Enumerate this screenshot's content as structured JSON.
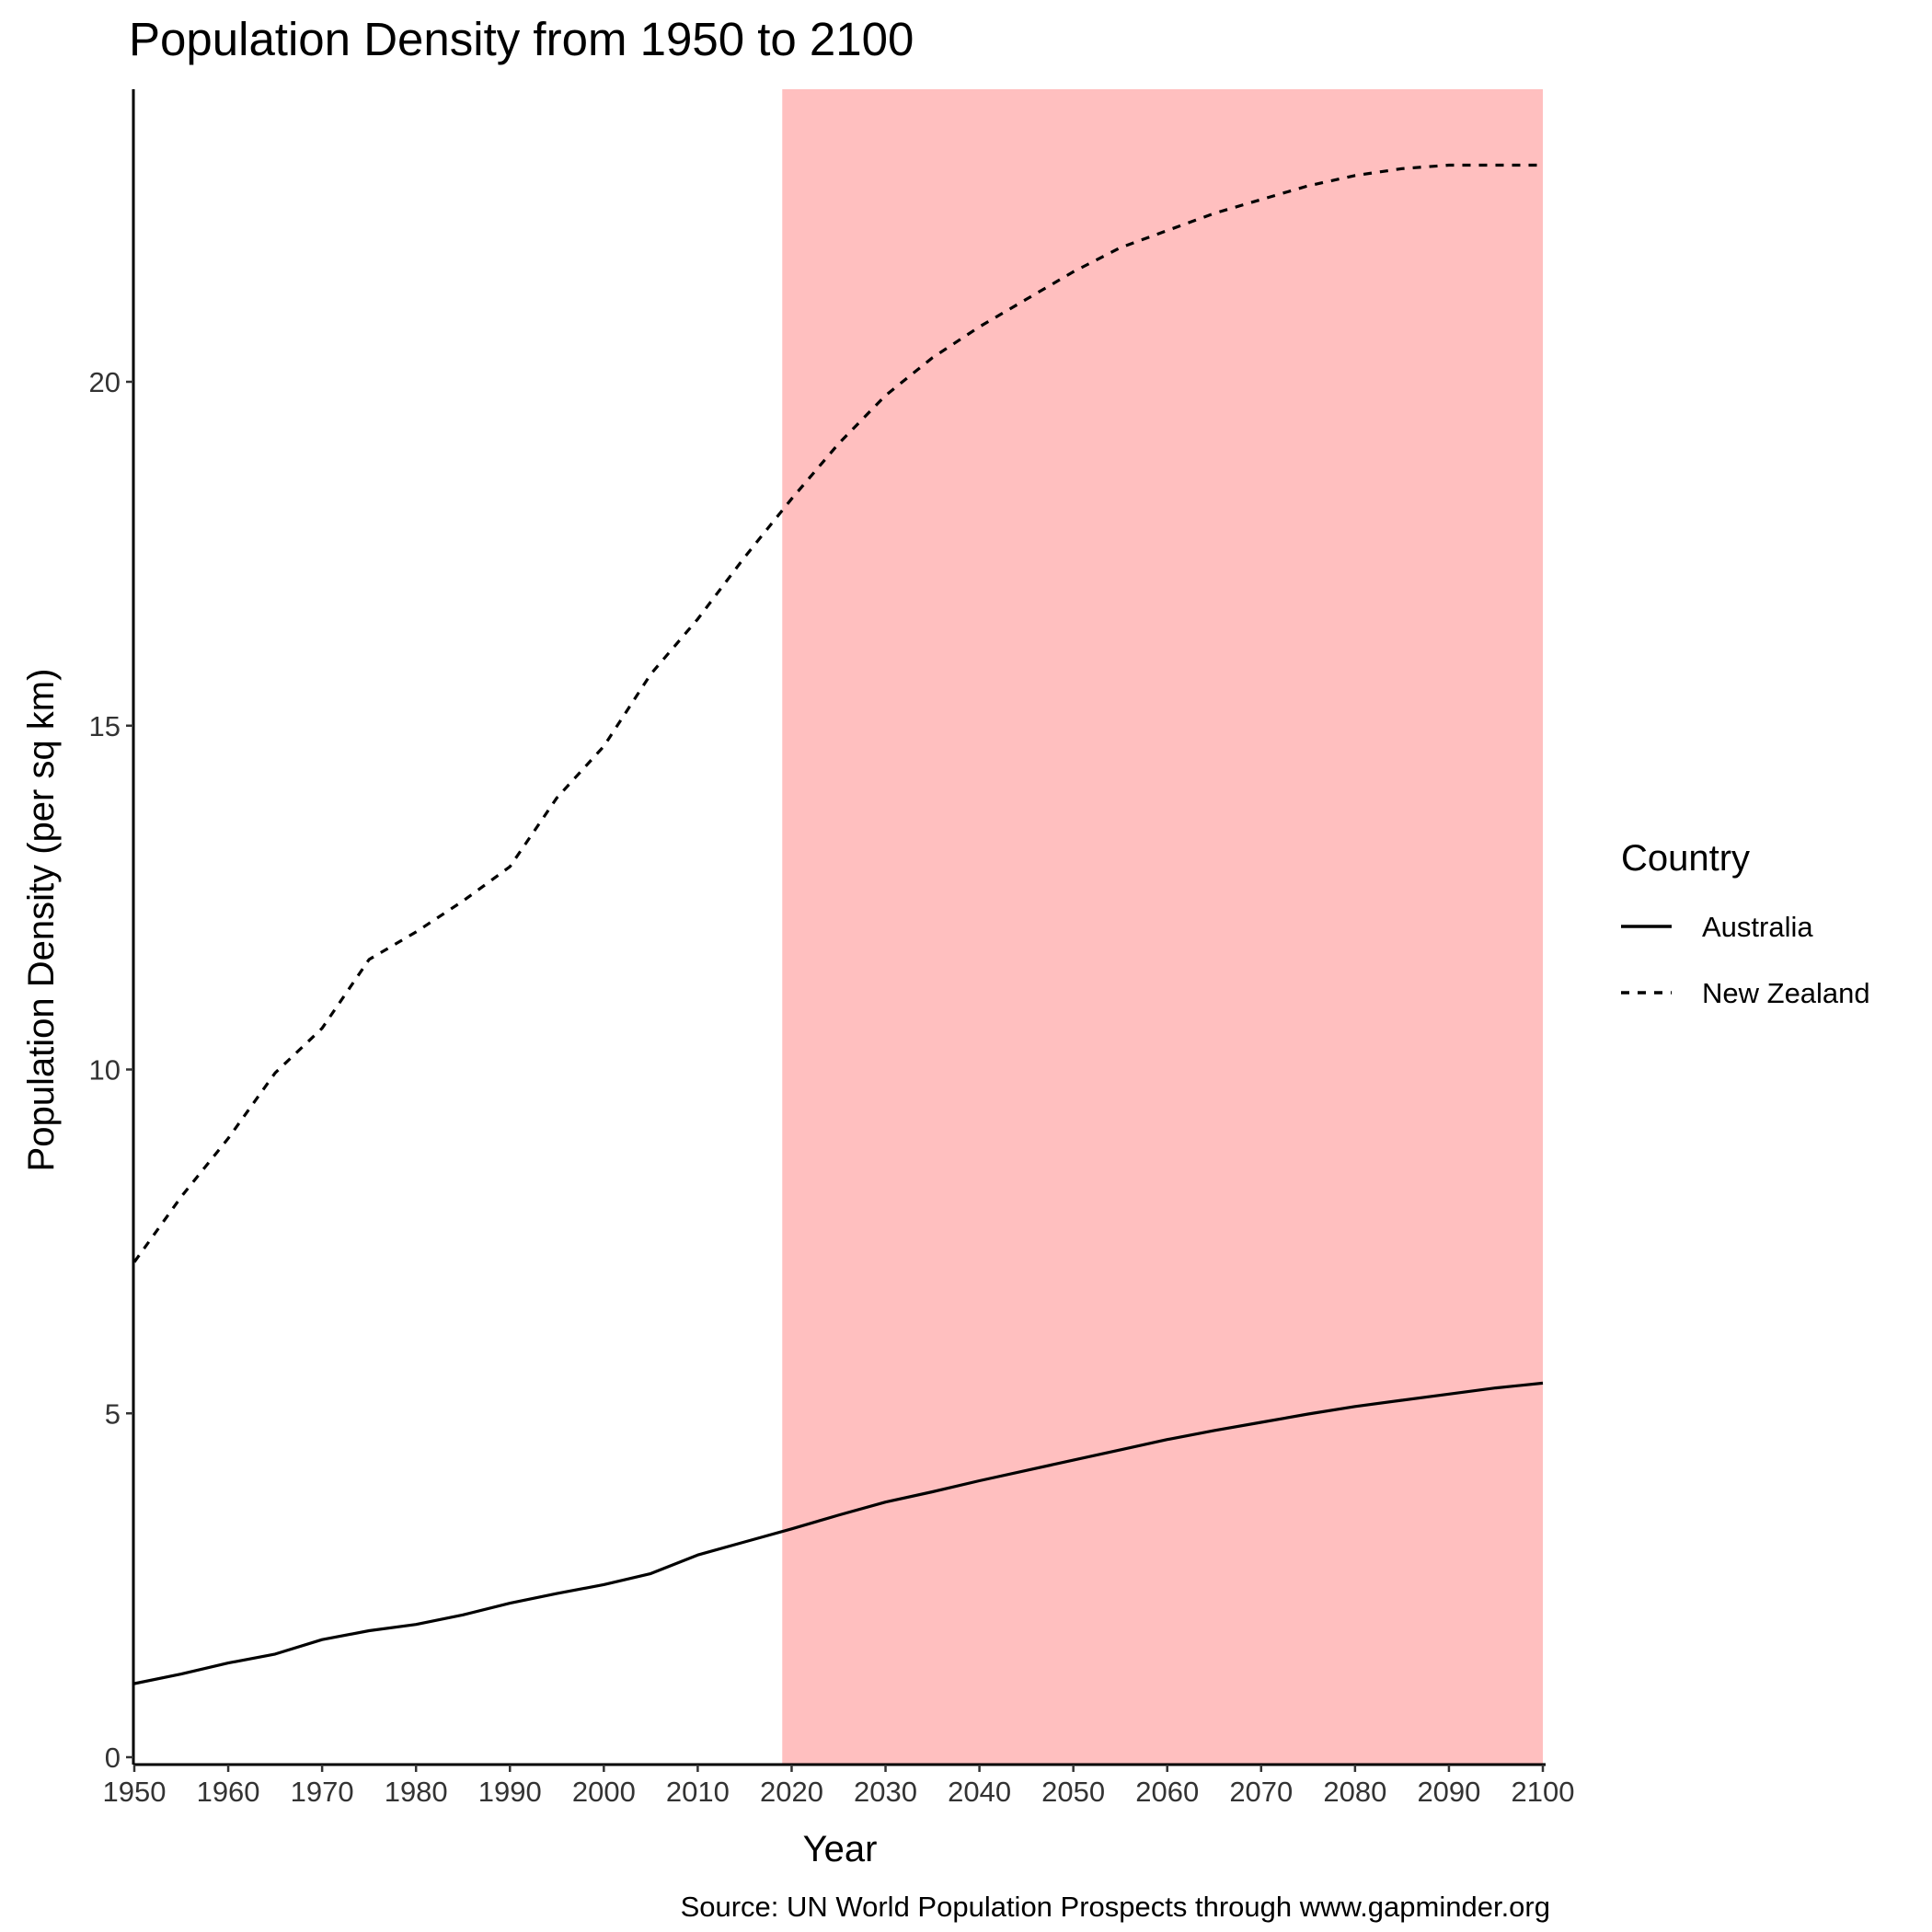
{
  "chart_data": {
    "type": "line",
    "title": "Population Density from 1950 to 2100",
    "xlabel": "Year",
    "ylabel": "Population Density (per sq km)",
    "caption": "Source: UN World Population Prospects through www.gapminder.org",
    "xlim": [
      1950,
      2100
    ],
    "ylim": [
      0,
      24
    ],
    "x_ticks": [
      1950,
      1960,
      1970,
      1980,
      1990,
      2000,
      2010,
      2020,
      2030,
      2040,
      2050,
      2060,
      2070,
      2080,
      2090,
      2100
    ],
    "y_ticks": [
      0,
      5,
      10,
      15,
      20
    ],
    "grid": false,
    "highlight": {
      "x_start": 2019,
      "x_end": 2100,
      "color": "#ffbfbf"
    },
    "legend": {
      "title": "Country",
      "position": "right"
    },
    "series": [
      {
        "name": "Australia",
        "linetype": "solid",
        "color": "#000000",
        "x": [
          1950,
          1955,
          1960,
          1965,
          1970,
          1975,
          1980,
          1985,
          1990,
          1995,
          2000,
          2005,
          2010,
          2015,
          2020,
          2025,
          2030,
          2035,
          2040,
          2045,
          2050,
          2055,
          2060,
          2065,
          2070,
          2075,
          2080,
          2085,
          2090,
          2095,
          2100
        ],
        "values": [
          1.07,
          1.21,
          1.37,
          1.5,
          1.71,
          1.84,
          1.93,
          2.07,
          2.24,
          2.38,
          2.51,
          2.67,
          2.94,
          3.13,
          3.32,
          3.52,
          3.71,
          3.86,
          4.02,
          4.17,
          4.32,
          4.47,
          4.62,
          4.75,
          4.87,
          4.99,
          5.1,
          5.19,
          5.28,
          5.37,
          5.44
        ]
      },
      {
        "name": "New Zealand",
        "linetype": "dashed",
        "color": "#000000",
        "x": [
          1950,
          1955,
          1960,
          1965,
          1970,
          1975,
          1980,
          1985,
          1990,
          1995,
          2000,
          2005,
          2010,
          2015,
          2020,
          2025,
          2030,
          2035,
          2040,
          2045,
          2050,
          2055,
          2060,
          2065,
          2070,
          2075,
          2080,
          2085,
          2090,
          2095,
          2100
        ],
        "values": [
          7.2,
          8.15,
          9.0,
          9.95,
          10.6,
          11.6,
          12.0,
          12.45,
          12.95,
          13.95,
          14.7,
          15.75,
          16.55,
          17.45,
          18.3,
          19.1,
          19.8,
          20.35,
          20.8,
          21.2,
          21.6,
          21.95,
          22.2,
          22.45,
          22.65,
          22.85,
          23.0,
          23.1,
          23.15,
          23.15,
          23.15
        ]
      }
    ]
  }
}
